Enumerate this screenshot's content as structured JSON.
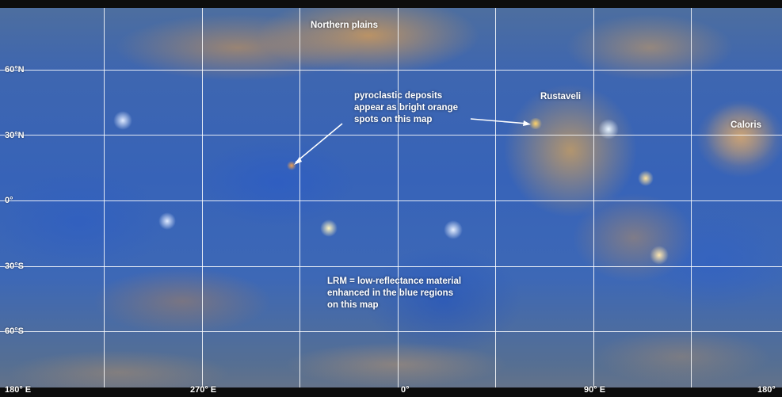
{
  "map": {
    "latitude_labels": [
      "60°N",
      "30°N",
      "0°",
      "30°S",
      "60°S"
    ],
    "longitude_labels": [
      "180° E",
      "270° E",
      "0°",
      "90° E",
      "180°"
    ],
    "features": {
      "northern_plains": "Northern plains",
      "rustaveli": "Rustaveli",
      "caloris": "Caloris"
    },
    "annotations": {
      "pyroclastic": [
        "pyroclastic deposits",
        "appear as bright orange",
        "spots on this map"
      ],
      "lrm": [
        "LRM = low-reflectance material",
        "enhanced in the blue regions",
        "on this map"
      ]
    },
    "colors": {
      "blue_regions": "#3763b8",
      "orange_regions": "#e0a050",
      "grid": "#ffffff"
    }
  }
}
